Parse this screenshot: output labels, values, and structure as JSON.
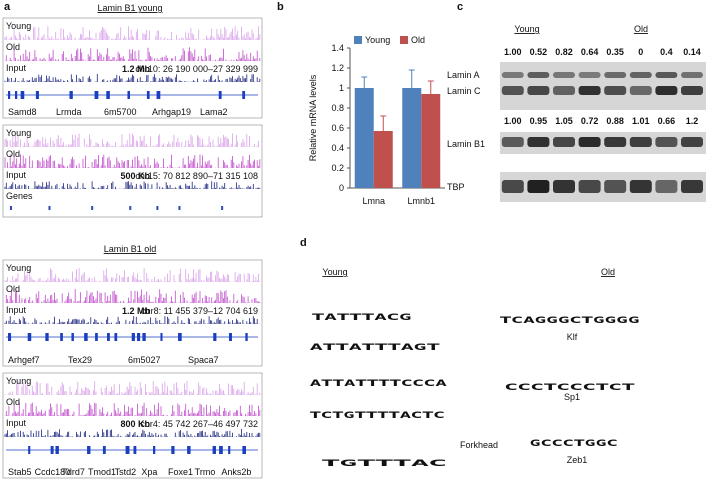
{
  "panel_a": {
    "label": "a",
    "title_young": "Lamin B1 young",
    "title_old": "Lamin B1 old",
    "blocks": [
      {
        "tracks": [
          "Young",
          "Old",
          "Input"
        ],
        "scale": "1.2 Mb",
        "coords": "chr10: 26 190 000–27 329 999",
        "genes": [
          "Samd8",
          "Lrmda",
          "6m5700",
          "Arhgap19",
          "Lama2"
        ]
      },
      {
        "tracks": [
          "Young",
          "Old",
          "Input",
          "Genes"
        ],
        "scale": "500 Kb",
        "coords": "chr15: 70 812 890–71 315 108"
      },
      {
        "tracks": [
          "Young",
          "Old",
          "Input"
        ],
        "scale": "1.2 Mb",
        "coords": "chr8: 11 455 379–12 704 619",
        "genes": [
          "Arhgef7",
          "Tex29",
          "6m5027",
          "Spaca7"
        ]
      },
      {
        "tracks": [
          "Young",
          "Old",
          "Input"
        ],
        "scale": "800 Kb",
        "coords": "chr4: 45 742 267–46 497 732",
        "genes": [
          "Stab5",
          "Ccdc180",
          "Tdrd7",
          "Tmod1",
          "Tstd2",
          "Xpa",
          "Foxe1",
          "Trmo",
          "Anks2b"
        ]
      }
    ]
  },
  "chart_data": {
    "type": "bar",
    "label": "b",
    "ylabel": "Relative mRNA levels",
    "categories": [
      "Lmna",
      "Lmnb1"
    ],
    "series": [
      {
        "name": "Young",
        "color": "#4f81bd",
        "values": [
          1,
          1
        ],
        "errors": [
          0.11,
          0.18
        ]
      },
      {
        "name": "Old",
        "color": "#c0504d",
        "values": [
          0.57,
          0.94
        ],
        "errors": [
          0.15,
          0.13
        ]
      }
    ],
    "ylim": [
      0,
      1.4
    ],
    "yticks": [
      0,
      0.2,
      0.4,
      0.6,
      0.8,
      1,
      1.2,
      1.4
    ]
  },
  "panel_c": {
    "label": "c",
    "young": "Young",
    "old": "Old",
    "row1": [
      "1.00",
      "0.52",
      "0.82",
      "0.64",
      "0.35",
      "0",
      "0.4",
      "0.14"
    ],
    "row2": [
      "1.00",
      "0.95",
      "1.05",
      "0.72",
      "0.88",
      "1.01",
      "0.66",
      "1.2"
    ],
    "lamin_a": "Lamin A",
    "lamin_c": "Lamin C",
    "lamin_b1": "Lamin B1",
    "tbp": "TBP"
  },
  "panel_d": {
    "label": "d",
    "young_title": "Young",
    "old_title": "Old",
    "young": [
      {
        "letters": [
          "T",
          "A",
          "T",
          "T",
          "T",
          "A",
          "C",
          "G"
        ]
      },
      {
        "letters": [
          "A",
          "T",
          "T",
          "A",
          "T",
          "T",
          "T",
          "A",
          "G",
          "T"
        ]
      },
      {
        "letters": [
          "A",
          "T",
          "T",
          "A",
          "T",
          "T",
          "T",
          "T",
          "C",
          "C",
          "C",
          "A"
        ]
      },
      {
        "letters": [
          "T",
          "C",
          "T",
          "G",
          "T",
          "T",
          "T",
          "T",
          "A",
          "C",
          "T",
          "C"
        ]
      },
      {
        "letters": [
          "T",
          "G",
          "T",
          "T",
          "T",
          "A",
          "C"
        ],
        "name": "Forkhead"
      }
    ],
    "old": [
      {
        "letters": [
          "T",
          "C",
          "A",
          "G",
          "G",
          "G",
          "C",
          "T",
          "G",
          "G",
          "G",
          "G"
        ],
        "name": "Klf"
      },
      {
        "letters": [
          "C",
          "C",
          "C",
          "T",
          "C",
          "C",
          "C",
          "T",
          "C",
          "T"
        ],
        "name": "Sp1"
      },
      {
        "letters": [
          "G",
          "C",
          "C",
          "C",
          "T",
          "G",
          "G",
          "C"
        ],
        "name": "Zeb1"
      }
    ]
  }
}
